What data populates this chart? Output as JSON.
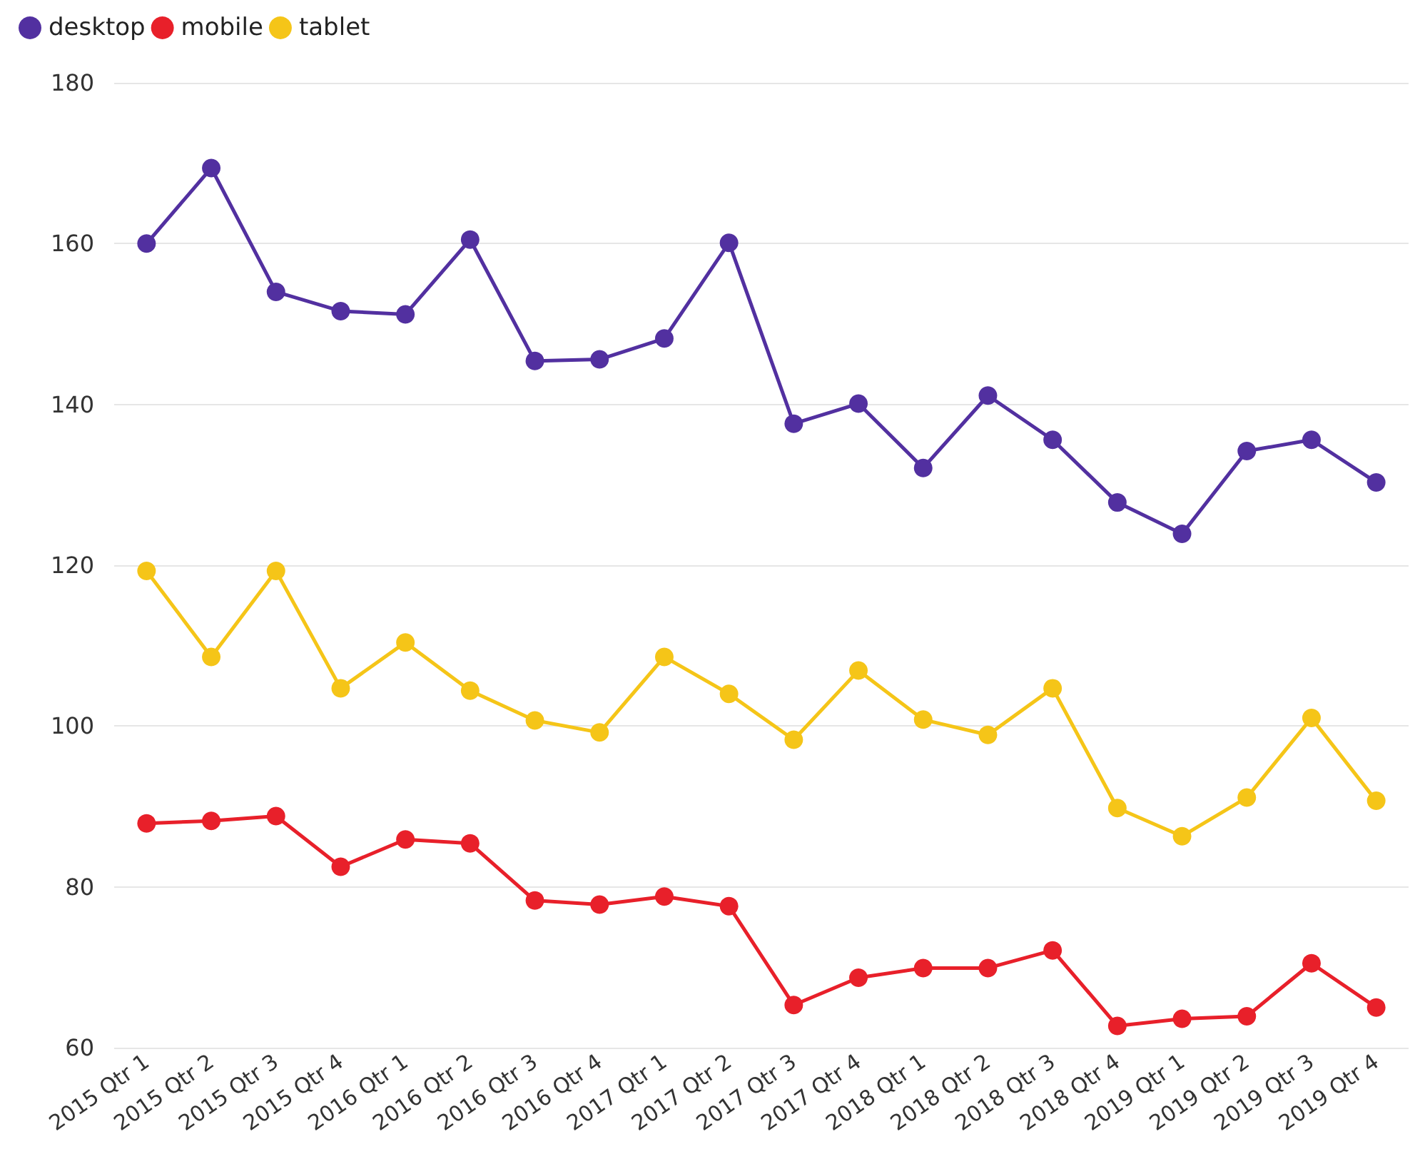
{
  "chart_data": {
    "type": "line",
    "categories": [
      "2015 Qtr 1",
      "2015 Qtr 2",
      "2015 Qtr 3",
      "2015 Qtr 4",
      "2016 Qtr 1",
      "2016 Qtr 2",
      "2016 Qtr 3",
      "2016 Qtr 4",
      "2017 Qtr 1",
      "2017 Qtr 2",
      "2017 Qtr 3",
      "2017 Qtr 4",
      "2018 Qtr 1",
      "2018 Qtr 2",
      "2018 Qtr 3",
      "2018 Qtr 4",
      "2019 Qtr 1",
      "2019 Qtr 2",
      "2019 Qtr 3",
      "2019 Qtr 4"
    ],
    "series": [
      {
        "name": "desktop",
        "color": "#5230a0",
        "values": [
          160,
          169.4,
          154,
          151.6,
          151.2,
          160.5,
          145.4,
          145.6,
          148.2,
          160.1,
          137.6,
          140.1,
          132.1,
          141.1,
          135.6,
          127.8,
          123.9,
          134.2,
          135.6,
          130.3
        ]
      },
      {
        "name": "mobile",
        "color": "#e8202a",
        "values": [
          87.9,
          88.2,
          88.8,
          82.5,
          85.9,
          85.4,
          78.3,
          77.8,
          78.8,
          77.6,
          65.3,
          68.7,
          69.9,
          69.9,
          72.1,
          62.7,
          63.6,
          63.9,
          70.5,
          65
        ]
      },
      {
        "name": "tablet",
        "color": "#f5c518",
        "values": [
          119.3,
          108.6,
          119.3,
          104.7,
          110.4,
          104.4,
          100.7,
          99.2,
          108.6,
          104,
          98.3,
          106.9,
          100.8,
          98.9,
          104.7,
          89.8,
          86.3,
          91.1,
          101,
          90.7
        ]
      }
    ],
    "ylim": [
      60,
      180
    ],
    "yticks": [
      60,
      80,
      100,
      120,
      140,
      160,
      180
    ],
    "grid": "y",
    "legend": "top left",
    "marker": "circle",
    "line_style": "solid"
  }
}
